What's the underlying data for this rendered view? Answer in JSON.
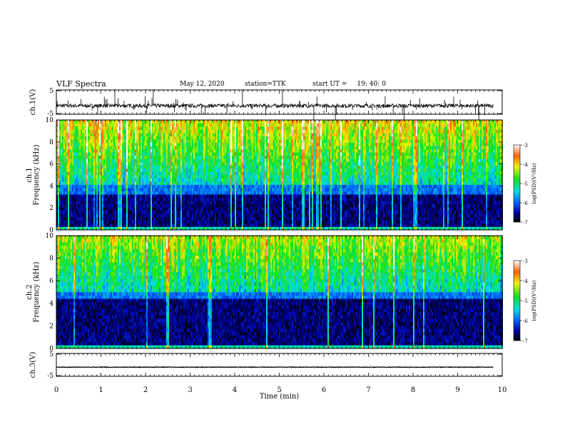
{
  "header": {
    "title": "VLF Spectra",
    "date": "May 12, 2020",
    "station": "station=TTK",
    "start_label": "start  UT =",
    "start_time": "19: 40: 0"
  },
  "colors": {
    "frame": "#000000",
    "waveform": "#000000",
    "spectrogram_background": "#000010"
  },
  "chart_data": [
    {
      "type": "line",
      "panel": "ch1-waveform",
      "ylabel": "ch.1(V)",
      "ylim": [
        -5,
        5
      ],
      "yticks": [
        "5",
        "-5"
      ],
      "xlim": [
        0,
        10
      ],
      "baseline": -1.5,
      "xlabel": ""
    },
    {
      "type": "heatmap",
      "panel": "ch1-spectrogram",
      "ylabel": "ch.1\nFrequency (kHz)",
      "ylabel_lines": [
        "ch.1",
        "Frequency (kHz)"
      ],
      "ylim": [
        0,
        10
      ],
      "yticks": [
        "0",
        "2",
        "4",
        "6",
        "8",
        "10"
      ],
      "xlim": [
        0,
        9.8
      ],
      "colorbar": {
        "label": "log(PSD)(V²/Hz)",
        "range": [
          -7,
          -3
        ],
        "ticks": [
          "-3",
          "-4",
          "-5",
          "-6",
          "-7"
        ]
      }
    },
    {
      "type": "heatmap",
      "panel": "ch2-spectrogram",
      "ylabel": "ch.2\nFrequency (kHz)",
      "ylabel_lines": [
        "ch.2",
        "Frequency (kHz)"
      ],
      "ylim": [
        0,
        10
      ],
      "yticks": [
        "0",
        "2",
        "4",
        "6",
        "8",
        "10"
      ],
      "xlim": [
        0,
        9.8
      ],
      "colorbar": {
        "label": "log(PSD)(V²/Hz)",
        "range": [
          -7,
          -3
        ],
        "ticks": [
          "-3",
          "-4",
          "-5",
          "-6",
          "-7"
        ]
      }
    },
    {
      "type": "line",
      "panel": "ch3-waveform",
      "ylabel": "ch.3(V)",
      "ylim": [
        -5,
        5
      ],
      "yticks": [
        "5",
        "-5"
      ],
      "xlim": [
        0,
        10
      ],
      "baseline": -1.0,
      "xlabel": "Time (min)",
      "xticks": [
        "0",
        "1",
        "2",
        "3",
        "4",
        "5",
        "6",
        "7",
        "8",
        "9",
        "10"
      ]
    }
  ]
}
